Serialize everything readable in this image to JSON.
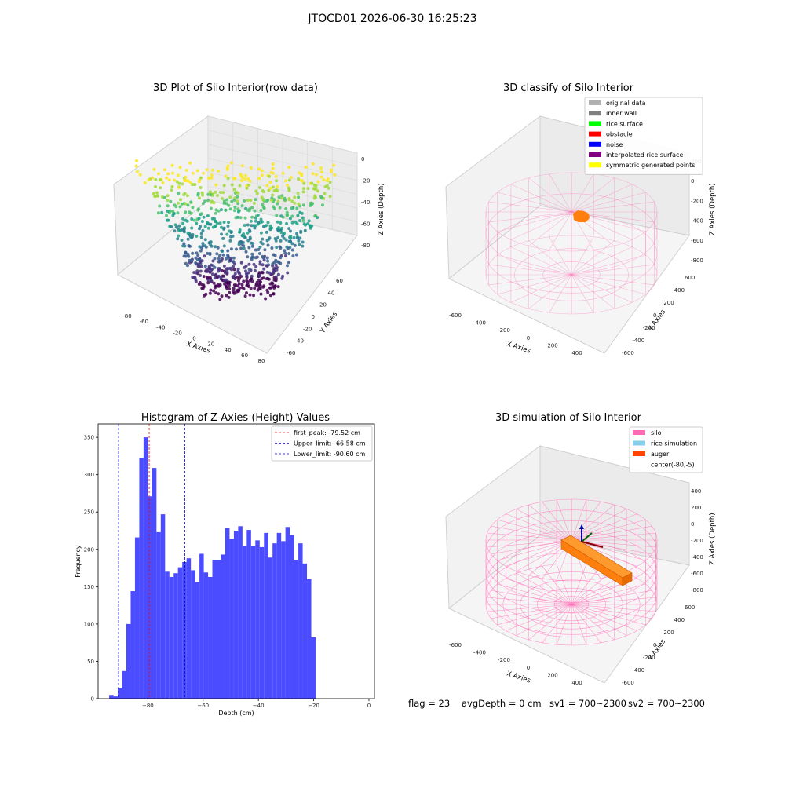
{
  "window": {
    "title": "JTOCD01 2026-06-30 16:25:23"
  },
  "colors": {
    "hist_bar": "#4b4bff",
    "peak_line": "#ff0000",
    "limit_line": "#0000cc",
    "silo": "#ff69b4",
    "rice_simulation": "#87ceeb",
    "auger": "#ff4500",
    "viridis_low": "#440154",
    "viridis_high": "#fde725"
  },
  "status": {
    "flag": "flag = 23",
    "avg_depth": "avgDepth = 0 cm",
    "sv1": "sv1 = 700~2300",
    "sv2": "sv2 = 700~2300"
  },
  "chart_data": [
    {
      "type": "scatter",
      "projection": "3d",
      "title": "3D Plot of Silo Interior(row data)",
      "xlabel": "X Axies",
      "ylabel": "Y Axies",
      "zlabel": "Z Axies (Depth)",
      "xticks": [
        "-80",
        "-60",
        "-40",
        "-20",
        "0",
        "20",
        "40",
        "60",
        "80"
      ],
      "yticks": [
        "-60",
        "-40",
        "-20",
        "0",
        "20",
        "40",
        "60"
      ],
      "zticks": [
        "0",
        "-20",
        "-40",
        "-60",
        "-80"
      ],
      "colormap": "viridis",
      "grid": true
    },
    {
      "type": "scatter",
      "projection": "3d",
      "title": "3D classify of Silo Interior",
      "xlabel": "X Axies",
      "ylabel": "Y Axies",
      "zlabel": "Z Axies (Depth)",
      "xticks": [
        "-600",
        "-400",
        "-200",
        "0",
        "200",
        "400"
      ],
      "yticks": [
        "-600",
        "-400",
        "-200",
        "0",
        "200",
        "400",
        "600"
      ],
      "zticks": [
        "200",
        "0",
        "-200",
        "-400",
        "-600",
        "-800"
      ],
      "legend": {
        "position": "top-right",
        "entries": [
          {
            "label": "original data",
            "color": "#b0b0b0"
          },
          {
            "label": "inner wall",
            "color": "#808080"
          },
          {
            "label": "rice surface",
            "color": "#00ff00"
          },
          {
            "label": "obstacle",
            "color": "#ff0000"
          },
          {
            "label": "noise",
            "color": "#0000ff"
          },
          {
            "label": "interpolated rice surface",
            "color": "#800080"
          },
          {
            "label": "symmetric generated points",
            "color": "#ffff00"
          }
        ]
      },
      "grid": true
    },
    {
      "type": "bar",
      "title": "Histogram of Z-Axies (Height) Values",
      "xlabel": "Depth (cm)",
      "ylabel": "Frequency",
      "xlim": [
        -98,
        2
      ],
      "ylim": [
        0,
        368
      ],
      "xticks": [
        -80,
        -60,
        -40,
        -20,
        0
      ],
      "yticks": [
        0,
        50,
        100,
        150,
        200,
        250,
        300,
        350
      ],
      "bin_start": -94,
      "bin_width": 1.556,
      "values": [
        5,
        3,
        14,
        37,
        100,
        144,
        216,
        322,
        350,
        271,
        309,
        223,
        247,
        170,
        163,
        168,
        176,
        183,
        188,
        172,
        156,
        194,
        169,
        163,
        186,
        186,
        193,
        229,
        214,
        225,
        231,
        204,
        226,
        204,
        212,
        203,
        222,
        189,
        208,
        222,
        211,
        230,
        219,
        186,
        208,
        181,
        160,
        82
      ],
      "lines": [
        {
          "label": "first_peak: -79.52 cm",
          "x": -79.52,
          "color": "#ff0000",
          "style": "dashed"
        },
        {
          "label": "Upper_limit: -66.58 cm",
          "x": -66.58,
          "color": "#0000cc",
          "style": "dashed"
        },
        {
          "label": "Lower_limit: -90.60 cm",
          "x": -90.6,
          "color": "#0000cc",
          "style": "dashed"
        }
      ],
      "legend": {
        "position": "top-right"
      }
    },
    {
      "type": "surface",
      "projection": "3d",
      "title": "3D simulation of Silo Interior",
      "xlabel": "X Axies",
      "ylabel": "Y Axies",
      "zlabel": "Z Axies (Depth)",
      "xticks": [
        "-600",
        "-400",
        "-200",
        "0",
        "200",
        "400"
      ],
      "yticks": [
        "-600",
        "-400",
        "-200",
        "0",
        "200",
        "400",
        "600"
      ],
      "zticks": [
        "400",
        "200",
        "0",
        "-200",
        "-400",
        "-600",
        "-800"
      ],
      "legend": {
        "position": "top-right",
        "entries": [
          {
            "label": "silo",
            "color": "#ff69b4"
          },
          {
            "label": "rice simulation",
            "color": "#87ceeb"
          },
          {
            "label": "auger",
            "color": "#ff4500"
          },
          {
            "label": "center(-80,-5)",
            "color": ""
          }
        ]
      },
      "grid": true
    }
  ]
}
